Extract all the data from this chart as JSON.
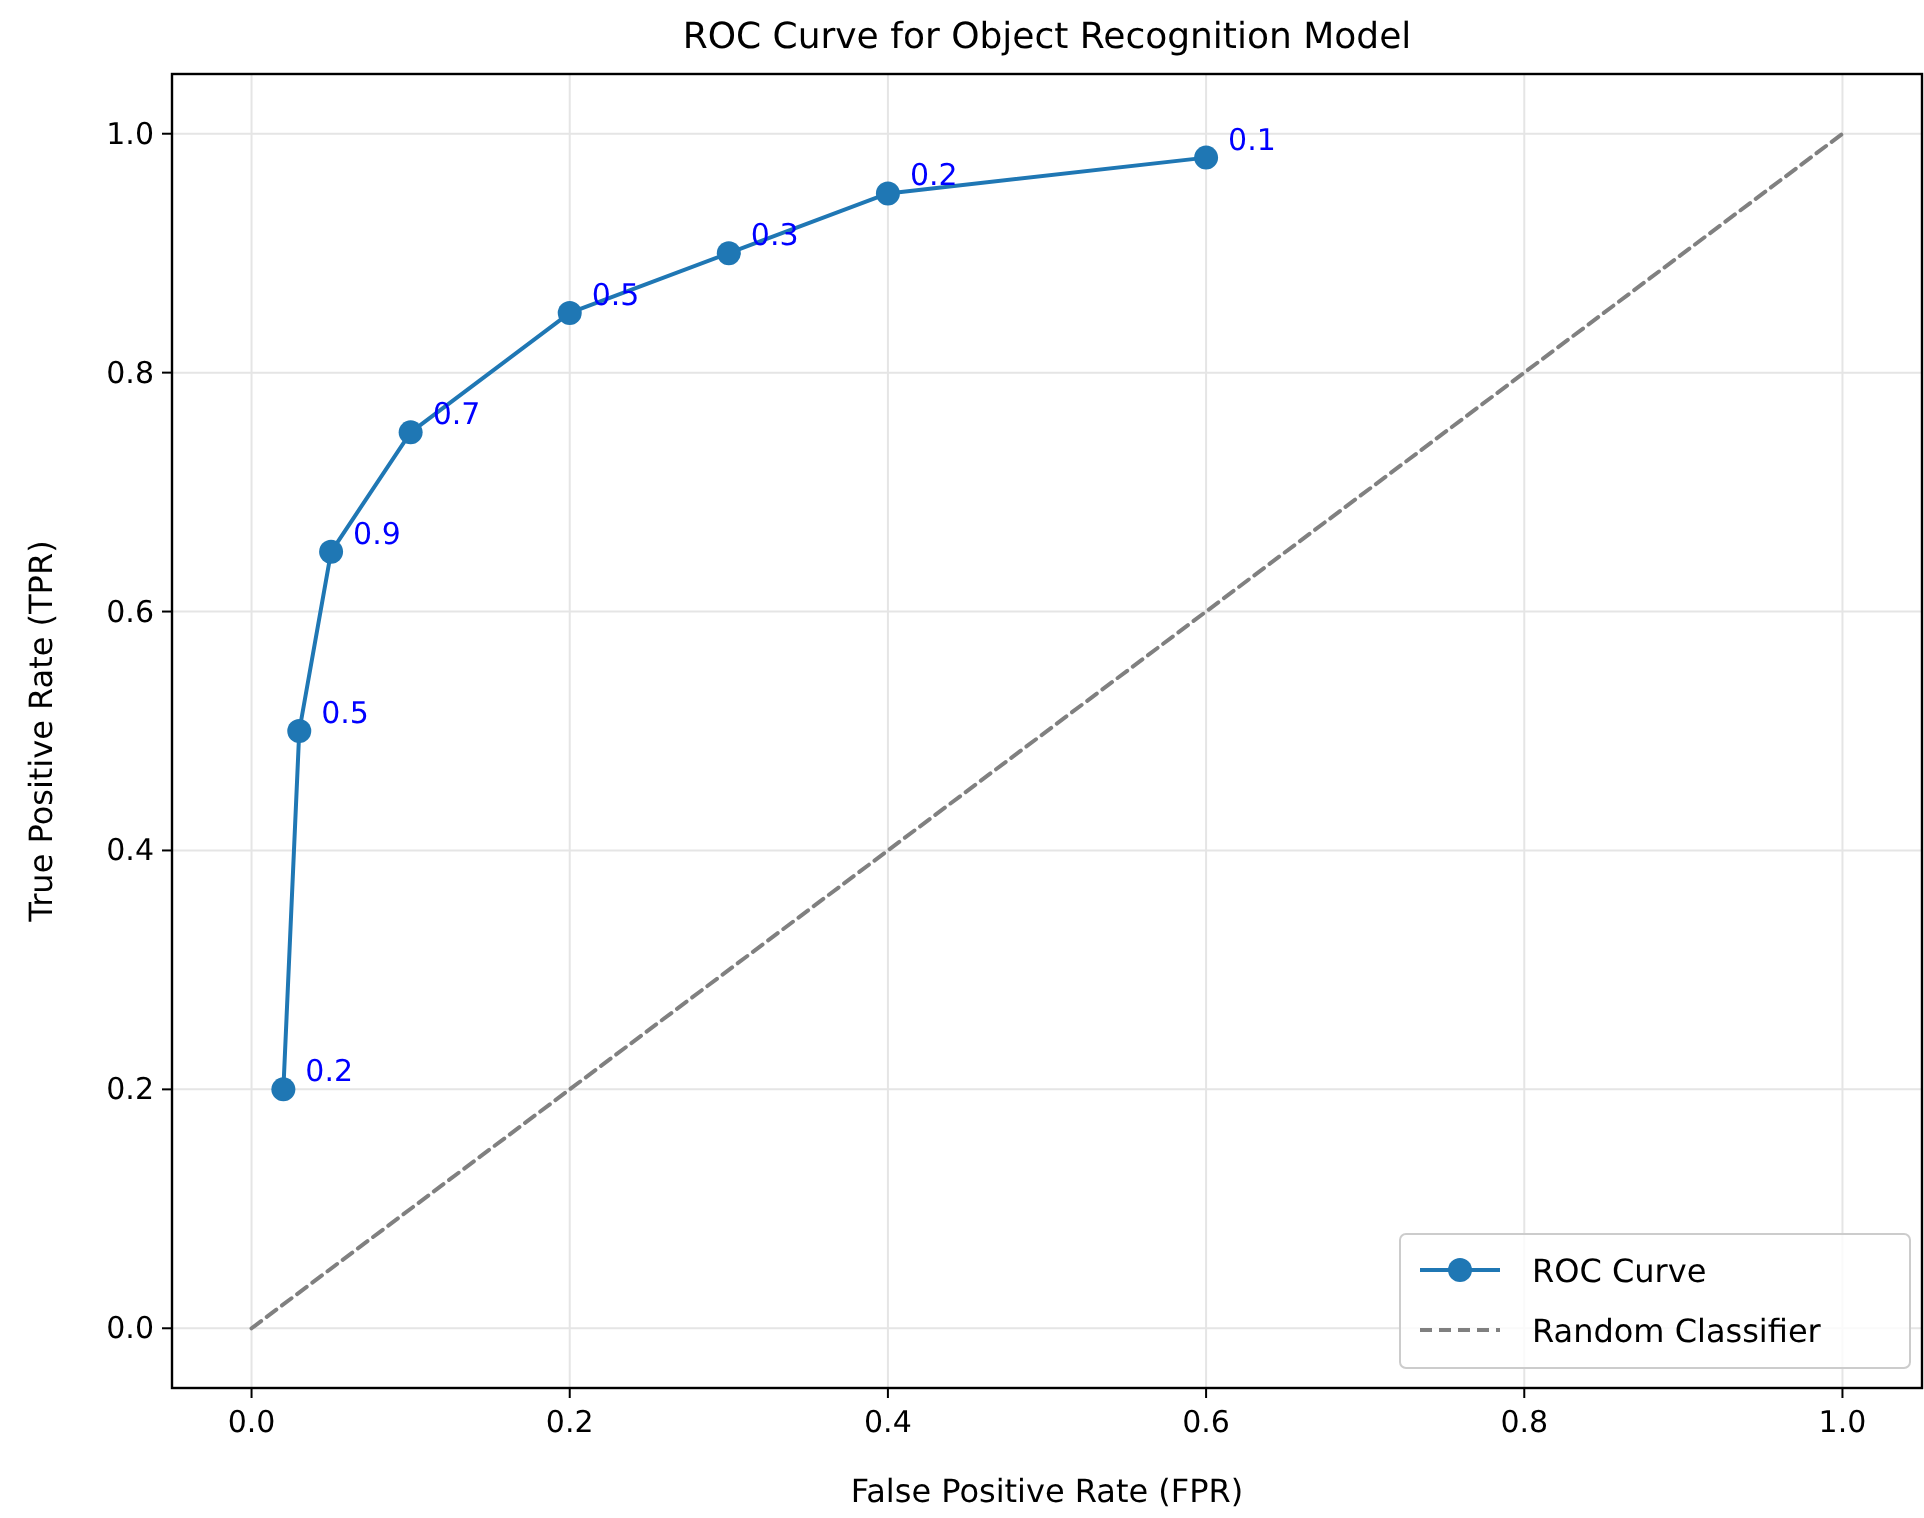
{
  "chart_data": {
    "type": "line",
    "title": "ROC Curve for Object Recognition Model",
    "xlabel": "False Positive Rate (FPR)",
    "ylabel": "True Positive Rate (TPR)",
    "xlim": [
      -0.05,
      1.05
    ],
    "ylim": [
      -0.05,
      1.05
    ],
    "xticks": [
      {
        "value": 0,
        "label": "0.0"
      },
      {
        "value": 0.2,
        "label": "0.2"
      },
      {
        "value": 0.4,
        "label": "0.4"
      },
      {
        "value": 0.6,
        "label": "0.6"
      },
      {
        "value": 0.8,
        "label": "0.8"
      },
      {
        "value": 1,
        "label": "1.0"
      }
    ],
    "yticks": [
      {
        "value": 0,
        "label": "0.0"
      },
      {
        "value": 0.2,
        "label": "0.2"
      },
      {
        "value": 0.4,
        "label": "0.4"
      },
      {
        "value": 0.6,
        "label": "0.6"
      },
      {
        "value": 0.8,
        "label": "0.8"
      },
      {
        "value": 1,
        "label": "1.0"
      }
    ],
    "grid": true,
    "legend": "bottom right",
    "annotations": [
      {
        "text": "0.2",
        "x": 0.02,
        "y": 0.2
      },
      {
        "text": "0.5",
        "x": 0.03,
        "y": 0.5
      },
      {
        "text": "0.9",
        "x": 0.05,
        "y": 0.65
      },
      {
        "text": "0.7",
        "x": 0.1,
        "y": 0.75
      },
      {
        "text": "0.5",
        "x": 0.2,
        "y": 0.85
      },
      {
        "text": "0.3",
        "x": 0.3,
        "y": 0.9
      },
      {
        "text": "0.2",
        "x": 0.4,
        "y": 0.95
      },
      {
        "text": "0.1",
        "x": 0.6,
        "y": 0.98
      }
    ],
    "series": [
      {
        "name": "ROC Curve",
        "color": "#1f77b4",
        "marker": "circle",
        "line_style": "solid",
        "x": [
          0.02,
          0.03,
          0.05,
          0.1,
          0.2,
          0.3,
          0.4,
          0.6
        ],
        "values": [
          0.2,
          0.5,
          0.65,
          0.75,
          0.85,
          0.9,
          0.95,
          0.98
        ]
      },
      {
        "name": "Random Classifier",
        "color": "#808080",
        "marker": "none",
        "line_style": "dashed",
        "x": [
          0,
          1
        ],
        "values": [
          0,
          1
        ]
      }
    ]
  }
}
